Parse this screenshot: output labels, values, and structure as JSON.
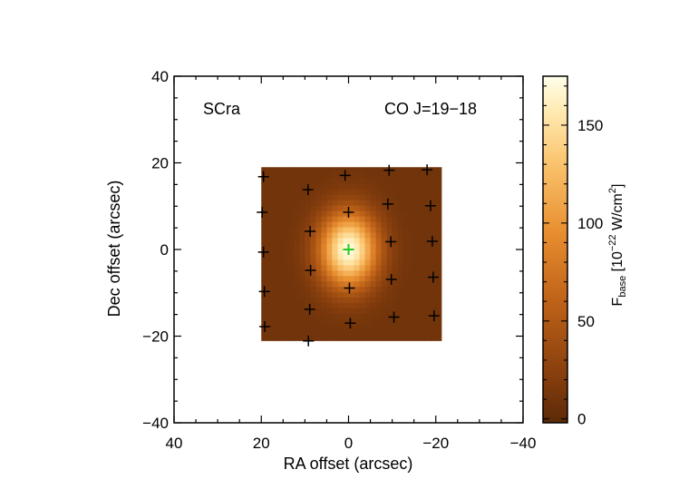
{
  "chart_data": {
    "type": "heatmap",
    "source_label": "SCra",
    "line_label": "CO J=19−18",
    "xlabel": "RA offset (arcsec)",
    "ylabel": "Dec offset (arcsec)",
    "xlim": [
      40,
      -40
    ],
    "ylim": [
      -40,
      40
    ],
    "x_ticks": [
      40,
      20,
      0,
      -20,
      -40
    ],
    "x_tick_labels": [
      "40",
      "20",
      "0",
      "−20",
      "−40"
    ],
    "y_ticks": [
      40,
      20,
      0,
      -20,
      -40
    ],
    "y_tick_labels": [
      "40",
      "20",
      "0",
      "−20",
      "−40"
    ],
    "map_extent": {
      "ra": [
        20,
        -20
      ],
      "dec": [
        -21,
        18.5
      ]
    },
    "emission_peak": {
      "ra": 0,
      "dec": 0,
      "value": 172
    },
    "emission_sigma_arcsec": {
      "ra": 4.6,
      "dec": 6.0
    },
    "background_level": 10,
    "colorbar": {
      "label_prefix": "F",
      "label_subscript": "base",
      "label_units": " [10",
      "label_exp": "−22",
      "label_units2": " W/cm",
      "label_exp2": "2",
      "label_close": "]",
      "range": [
        -2,
        175
      ],
      "ticks": [
        0,
        50,
        100,
        150
      ],
      "tick_labels": [
        "0",
        "50",
        "100",
        "150"
      ]
    },
    "spaxel_positions": [
      {
        "ra": 19.5,
        "dec": 16.8
      },
      {
        "ra": 9.3,
        "dec": 13.8
      },
      {
        "ra": 0.8,
        "dec": 17.1
      },
      {
        "ra": -9.3,
        "dec": 18.3
      },
      {
        "ra": -18.0,
        "dec": 18.4
      },
      {
        "ra": 19.8,
        "dec": 8.6
      },
      {
        "ra": -9.0,
        "dec": 10.5
      },
      {
        "ra": -18.8,
        "dec": 10.1
      },
      {
        "ra": 8.8,
        "dec": 4.2
      },
      {
        "ra": 0.0,
        "dec": 8.6
      },
      {
        "ra": 19.5,
        "dec": -0.6
      },
      {
        "ra": -9.7,
        "dec": 1.8
      },
      {
        "ra": -19.2,
        "dec": 1.9
      },
      {
        "ra": 8.7,
        "dec": -4.8
      },
      {
        "ra": -0.2,
        "dec": -8.9
      },
      {
        "ra": -9.8,
        "dec": -6.9
      },
      {
        "ra": -19.4,
        "dec": -6.4
      },
      {
        "ra": 19.3,
        "dec": -9.7
      },
      {
        "ra": 8.9,
        "dec": -13.8
      },
      {
        "ra": -0.4,
        "dec": -17.0
      },
      {
        "ra": -10.4,
        "dec": -15.6
      },
      {
        "ra": -19.6,
        "dec": -15.3
      },
      {
        "ra": 19.2,
        "dec": -17.8
      },
      {
        "ra": 9.2,
        "dec": -21.1
      }
    ],
    "central_marker": {
      "ra": 0,
      "dec": 0,
      "color": "#22cc22"
    },
    "colormap": "hot-brown (dark brown to pale yellow)",
    "grid": false
  }
}
